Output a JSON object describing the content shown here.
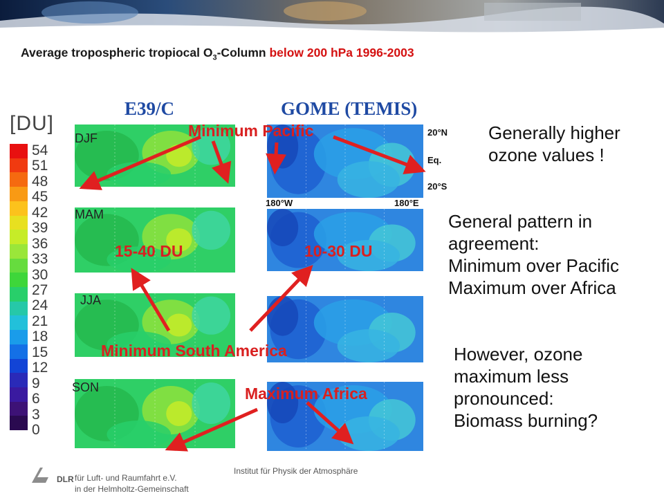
{
  "title": {
    "part1": "Average tropospheric tropiocal O",
    "sub": "3",
    "part2": "-Column ",
    "red_part": "below 200 hPa 1996-2003"
  },
  "models": {
    "left": "E39/C",
    "right": "GOME (TEMIS)"
  },
  "scale_label": "[DU]",
  "colorbar": {
    "labels": [
      "54",
      "51",
      "48",
      "45",
      "42",
      "39",
      "36",
      "33",
      "30",
      "27",
      "24",
      "21",
      "18",
      "15",
      "12",
      "9",
      "6",
      "3",
      "0"
    ],
    "colors": [
      "#e81010",
      "#f03a10",
      "#f56a10",
      "#f99a14",
      "#fcc21c",
      "#e8e020",
      "#c6ec28",
      "#9ae63a",
      "#66dc3e",
      "#3ed63a",
      "#28cf6a",
      "#26c8a8",
      "#22c0da",
      "#1a9cea",
      "#1470e6",
      "#1244d6",
      "#2a2ab8",
      "#3a1aa0",
      "#3d1276",
      "#2a0a50"
    ]
  },
  "seasons": [
    "DJF",
    "MAM",
    "JJA",
    "SON"
  ],
  "lat_labels": {
    "n20": "20°N",
    "eq": "Eq.",
    "s20": "20°S"
  },
  "lon_labels": {
    "w180": "180°W",
    "e180": "180°E"
  },
  "annotations": {
    "min_pacific": "Minimum Pacific",
    "range_left": "15-40 DU",
    "range_right": "10-30 DU",
    "min_south_america": "Minimum South America",
    "max_africa": "Maximum Africa"
  },
  "notes": {
    "n1": [
      "Generally higher",
      "ozone values !"
    ],
    "n2": [
      "General pattern in",
      "agreement:",
      "Minimum over Pacific",
      "Maximum over Africa"
    ],
    "n3": [
      "However, ozone",
      "maximum less",
      "pronounced:",
      "Biomass burning?"
    ]
  },
  "footer": {
    "logo": "DLR",
    "line1": "für Luft- und Raumfahrt e.V.",
    "line2": "in der Helmholtz-Gemeinschaft",
    "institute": "Institut für Physik der Atmosphäre"
  }
}
